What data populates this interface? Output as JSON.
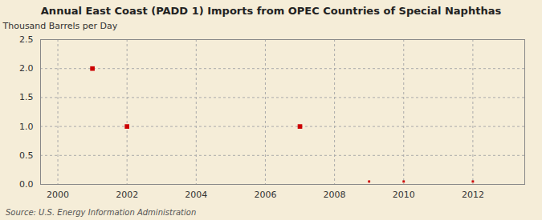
{
  "chart_data": {
    "type": "scatter",
    "title": "Annual East Coast (PADD 1) Imports from OPEC Countries of Special Naphthas",
    "ylabel": "Thousand Barrels per Day",
    "source": "Source: U.S. Energy Information Administration",
    "x": [
      2001,
      2002,
      2007,
      2009,
      2010,
      2012
    ],
    "values": [
      2.0,
      1.0,
      1.0,
      0.05,
      0.05,
      0.05
    ],
    "color": "#cc0000",
    "marker": "square",
    "xlim": [
      1999.5,
      2013.5
    ],
    "ylim": [
      0.0,
      2.5
    ],
    "xticks": [
      2000,
      2002,
      2004,
      2006,
      2008,
      2010,
      2012
    ],
    "yticks": [
      {
        "value": 0.0,
        "label": "0.0"
      },
      0.5,
      {
        "value": 1.0,
        "label": "1.0"
      },
      1.5,
      {
        "value": 2.0,
        "label": "2.0"
      },
      2.5
    ],
    "grid": true
  }
}
